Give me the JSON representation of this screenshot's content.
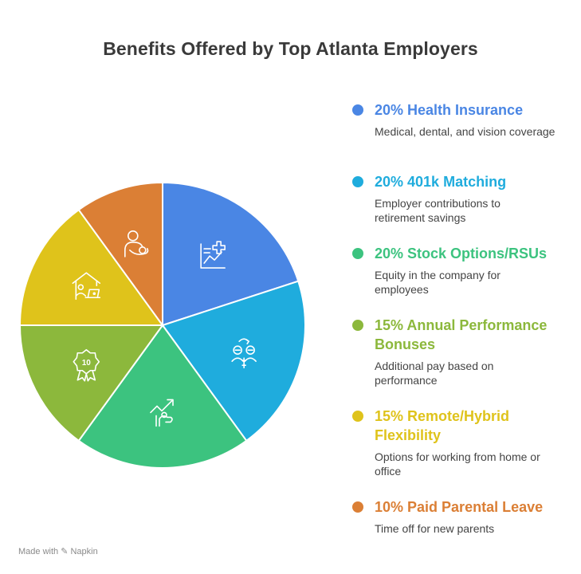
{
  "title": "Benefits Offered by Top Atlanta Employers",
  "footer": "Made with ✎ Napkin",
  "chart_data": {
    "type": "pie",
    "title": "Benefits Offered by Top Atlanta Employers",
    "slices": [
      {
        "label": "Health Insurance",
        "value": 20,
        "color": "#4A86E4",
        "icon": "health-chart-icon"
      },
      {
        "label": "401k Matching",
        "value": 20,
        "color": "#1FACDD",
        "icon": "exchange-icon"
      },
      {
        "label": "Stock Options/RSUs",
        "value": 20,
        "color": "#3CC37F",
        "icon": "growth-hand-icon"
      },
      {
        "label": "Annual Performance Bonuses",
        "value": 15,
        "color": "#8CB83C",
        "icon": "award-ribbon-icon"
      },
      {
        "label": "Remote/Hybrid Flexibility",
        "value": 15,
        "color": "#DFC31B",
        "icon": "home-laptop-icon"
      },
      {
        "label": "Paid Parental Leave",
        "value": 10,
        "color": "#DB7F35",
        "icon": "parent-baby-icon"
      }
    ]
  },
  "legend": [
    {
      "title": "20% Health Insurance",
      "desc": "Medical, dental, and vision coverage",
      "color": "#4A86E4"
    },
    {
      "title": "20% 401k Matching",
      "desc": "Employer contributions to retirement savings",
      "color": "#1FACDD"
    },
    {
      "title": "20% Stock Options/RSUs",
      "desc": "Equity in the company for employees",
      "color": "#3CC37F"
    },
    {
      "title": "15% Annual Performance Bonuses",
      "desc": "Additional pay based on performance",
      "color": "#8CB83C"
    },
    {
      "title": "15% Remote/Hybrid Flexibility",
      "desc": "Options for working from home or office",
      "color": "#DFC31B"
    },
    {
      "title": "10% Paid Parental Leave",
      "desc": "Time off for new parents",
      "color": "#DB7F35"
    }
  ]
}
